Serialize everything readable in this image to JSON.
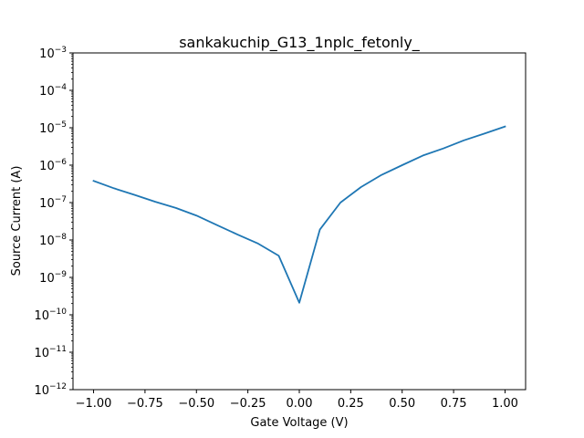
{
  "chart_data": {
    "type": "line",
    "title": "sankakuchip_G13_1nplc_fetonly_",
    "xlabel": "Gate Voltage (V)",
    "ylabel": "Source Current (A)",
    "xlim": [
      -1.1,
      1.1
    ],
    "ylim": [
      1e-12,
      0.001
    ],
    "yscale": "log",
    "grid": false,
    "line_color": "#1f77b4",
    "x_ticks": [
      {
        "value": -1.0,
        "label": "−1.00"
      },
      {
        "value": -0.75,
        "label": "−0.75"
      },
      {
        "value": -0.5,
        "label": "−0.50"
      },
      {
        "value": -0.25,
        "label": "−0.25"
      },
      {
        "value": 0.0,
        "label": "0.00"
      },
      {
        "value": 0.25,
        "label": "0.25"
      },
      {
        "value": 0.5,
        "label": "0.50"
      },
      {
        "value": 0.75,
        "label": "0.75"
      },
      {
        "value": 1.0,
        "label": "1.00"
      }
    ],
    "y_ticks": [
      {
        "value": 1e-12,
        "base": "10",
        "exp": "−12"
      },
      {
        "value": 1e-11,
        "base": "10",
        "exp": "−11"
      },
      {
        "value": 1e-10,
        "base": "10",
        "exp": "−10"
      },
      {
        "value": 1e-09,
        "base": "10",
        "exp": "−9"
      },
      {
        "value": 1e-08,
        "base": "10",
        "exp": "−8"
      },
      {
        "value": 1e-07,
        "base": "10",
        "exp": "−7"
      },
      {
        "value": 1e-06,
        "base": "10",
        "exp": "−6"
      },
      {
        "value": 1e-05,
        "base": "10",
        "exp": "−5"
      },
      {
        "value": 0.0001,
        "base": "10",
        "exp": "−4"
      },
      {
        "value": 0.001,
        "base": "10",
        "exp": "−3"
      }
    ],
    "series": [
      {
        "x": [
          -1.0,
          -0.9,
          -0.8,
          -0.7,
          -0.6,
          -0.5,
          -0.4,
          -0.3,
          -0.2,
          -0.1,
          0.0,
          0.1,
          0.2,
          0.3,
          0.4,
          0.5,
          0.6,
          0.7,
          0.8,
          0.9,
          1.0
        ],
        "y": [
          3.8e-07,
          2.4e-07,
          1.6e-07,
          1.05e-07,
          7.2e-08,
          4.5e-08,
          2.5e-08,
          1.4e-08,
          8e-09,
          3.8e-09,
          2.1e-10,
          1.9e-08,
          1e-07,
          2.6e-07,
          5.5e-07,
          1e-06,
          1.8e-06,
          2.8e-06,
          4.6e-06,
          7e-06,
          1.08e-05
        ]
      }
    ]
  }
}
